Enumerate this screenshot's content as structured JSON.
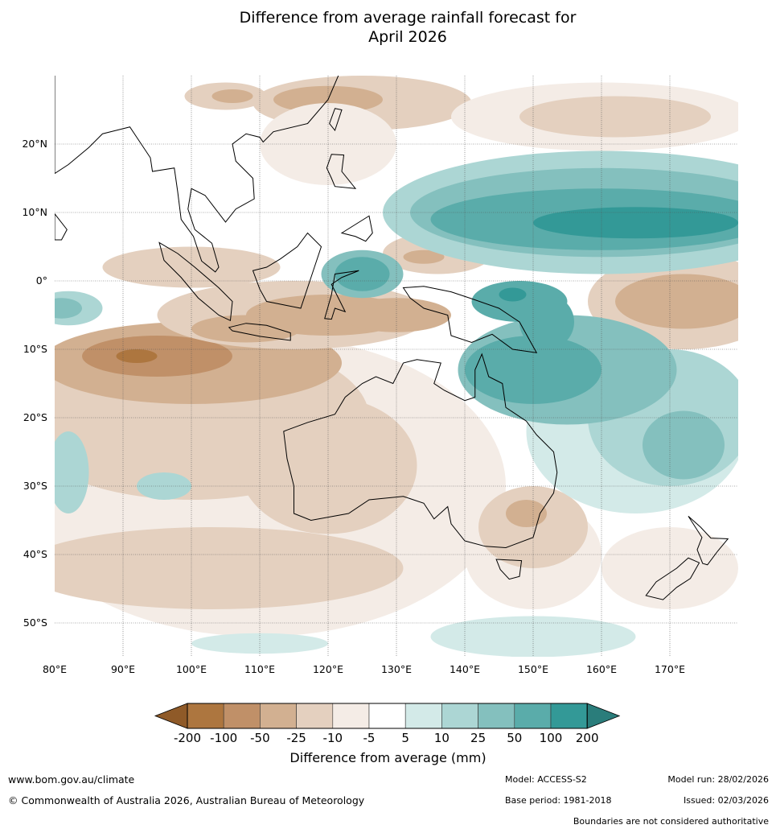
{
  "title_line1": "Difference from average rainfall forecast for",
  "title_line2": "April 2026",
  "axes": {
    "lon_ticks": [
      "80°E",
      "90°E",
      "100°E",
      "110°E",
      "120°E",
      "130°E",
      "140°E",
      "150°E",
      "160°E",
      "170°E"
    ],
    "lat_ticks": [
      "20°N",
      "10°N",
      "0°",
      "10°S",
      "20°S",
      "30°S",
      "40°S",
      "50°S"
    ]
  },
  "colorbar": {
    "label": "Difference from average (mm)",
    "ticks": [
      "-200",
      "-100",
      "-50",
      "-25",
      "-10",
      "-5",
      "5",
      "10",
      "25",
      "50",
      "100",
      "200"
    ],
    "colors": [
      "#ad763f",
      "#c09068",
      "#d2b091",
      "#e4d0bf",
      "#f4ece6",
      "#ffffff",
      "#d3eae8",
      "#acd6d4",
      "#84c0be",
      "#5aacaa",
      "#339997"
    ],
    "under_color": "#8f5a28",
    "over_color": "#2a7d7b"
  },
  "footer": {
    "website": "www.bom.gov.au/climate",
    "copyright": "© Commonwealth of Australia 2026, Australian Bureau of Meteorology",
    "model": "Model: ACCESS-S2",
    "model_run": "Model run: 28/02/2026",
    "base_period": "Base period: 1981-2018",
    "issued": "Issued: 02/03/2026",
    "disclaimer": "Boundaries are not considered authoritative"
  }
}
